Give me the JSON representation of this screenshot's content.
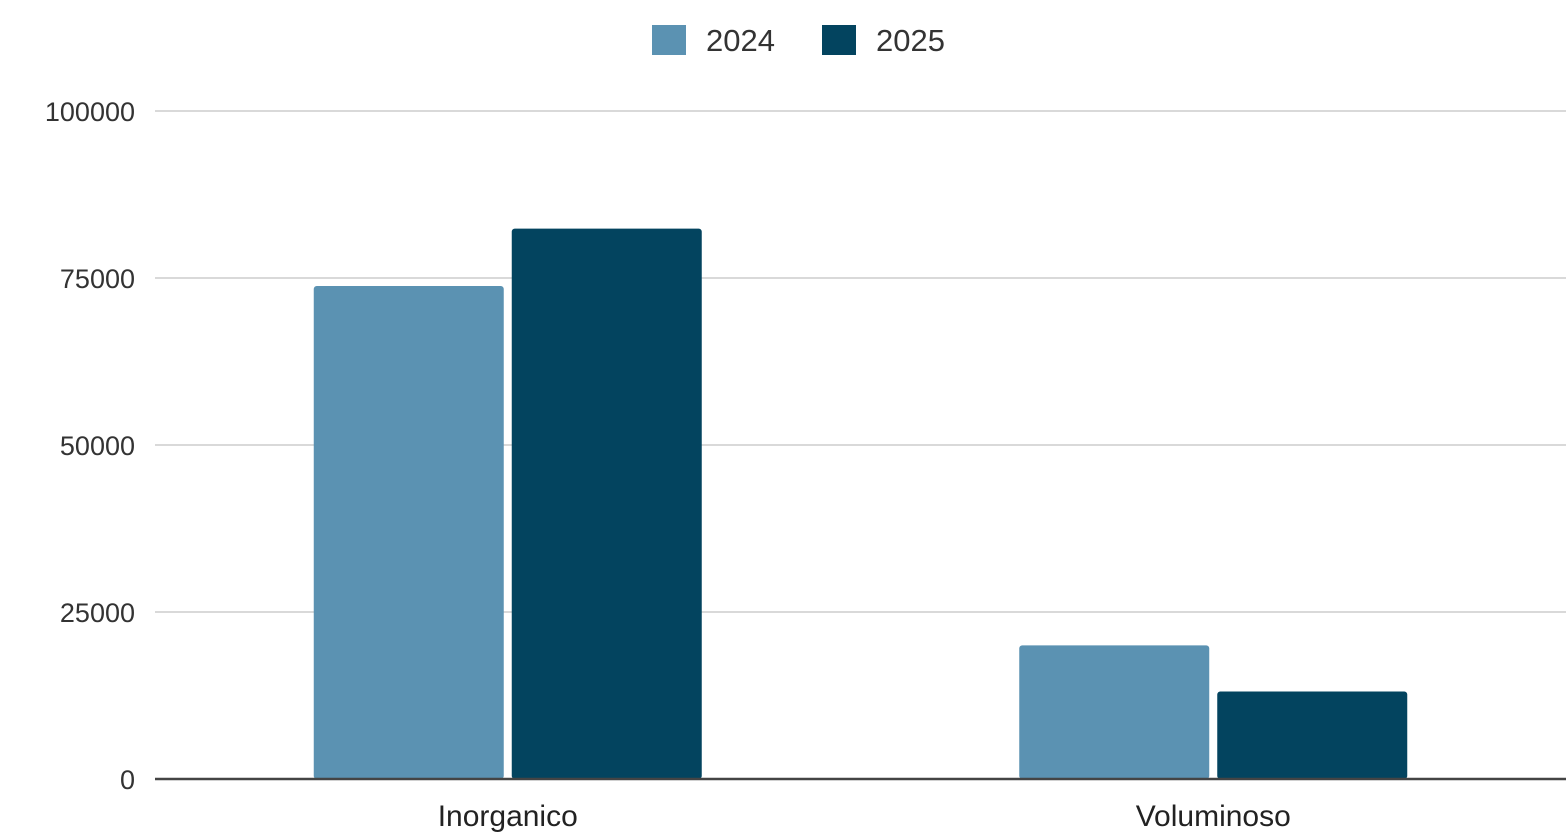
{
  "chart_data": {
    "type": "bar",
    "title": "",
    "xlabel": "",
    "ylabel": "",
    "categories": [
      "Inorganico",
      "Voluminoso"
    ],
    "series": [
      {
        "name": "2024",
        "color": "#5b92b2",
        "values": [
          73800,
          20000
        ]
      },
      {
        "name": "2025",
        "color": "#03445f",
        "values": [
          82400,
          13100
        ]
      }
    ],
    "ylim": [
      0,
      100000
    ],
    "yticks": [
      "0",
      "25000",
      "50000",
      "75000",
      "100000"
    ],
    "grid": true,
    "legend_position": "top-center"
  }
}
